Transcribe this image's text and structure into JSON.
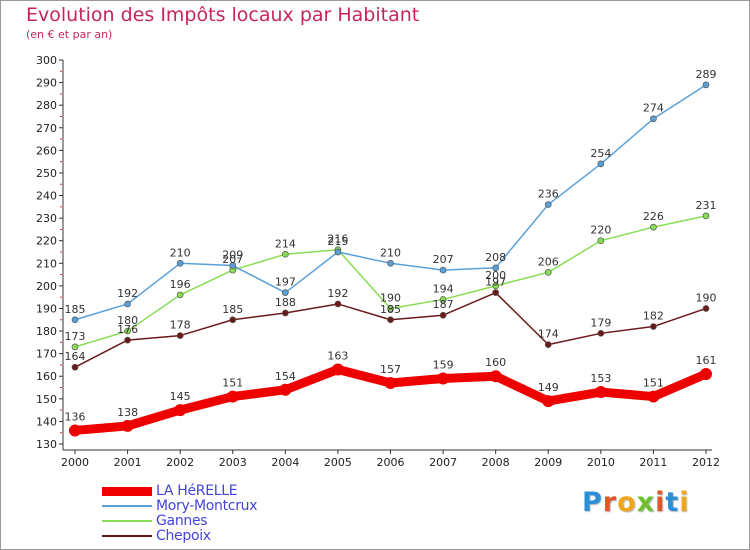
{
  "title": "Evolution des Impôts locaux par Habitant",
  "subtitle": "(en € et par an)",
  "logo": {
    "text": "Proxiti",
    "letter_colors": [
      "#2a8fd6",
      "#e2572a",
      "#f0a51e",
      "#6cbf2e",
      "#e2572a",
      "#2a8fd6",
      "#f0a51e"
    ]
  },
  "chart_data": {
    "type": "line",
    "title": "Evolution des Impôts locaux par Habitant",
    "subtitle": "(en € et par an)",
    "x": [
      "2000",
      "2001",
      "2002",
      "2003",
      "2004",
      "2005",
      "2006",
      "2007",
      "2008",
      "2009",
      "2010",
      "2011",
      "2012"
    ],
    "ylim": [
      130,
      300
    ],
    "yticks": [
      130,
      140,
      150,
      160,
      170,
      180,
      190,
      200,
      210,
      220,
      230,
      240,
      250,
      260,
      270,
      280,
      290,
      300
    ],
    "grid": false,
    "legend_position": "bottom-left",
    "series": [
      {
        "name": "LA HéRELLE",
        "color": "#ee0000",
        "values": [
          136,
          138,
          145,
          151,
          154,
          163,
          157,
          159,
          160,
          149,
          153,
          151,
          161
        ]
      },
      {
        "name": "Mory-Montcrux",
        "color": "#5aa0d8",
        "values": [
          185,
          192,
          210,
          209,
          197,
          215,
          210,
          207,
          208,
          236,
          254,
          274,
          289
        ]
      },
      {
        "name": "Gannes",
        "color": "#88dd55",
        "values": [
          173,
          180,
          196,
          207,
          214,
          216,
          190,
          194,
          200,
          206,
          220,
          226,
          231
        ]
      },
      {
        "name": "Chepoix",
        "color": "#6b1a1a",
        "values": [
          164,
          176,
          178,
          185,
          188,
          192,
          185,
          187,
          197,
          174,
          179,
          182,
          190
        ]
      }
    ]
  }
}
